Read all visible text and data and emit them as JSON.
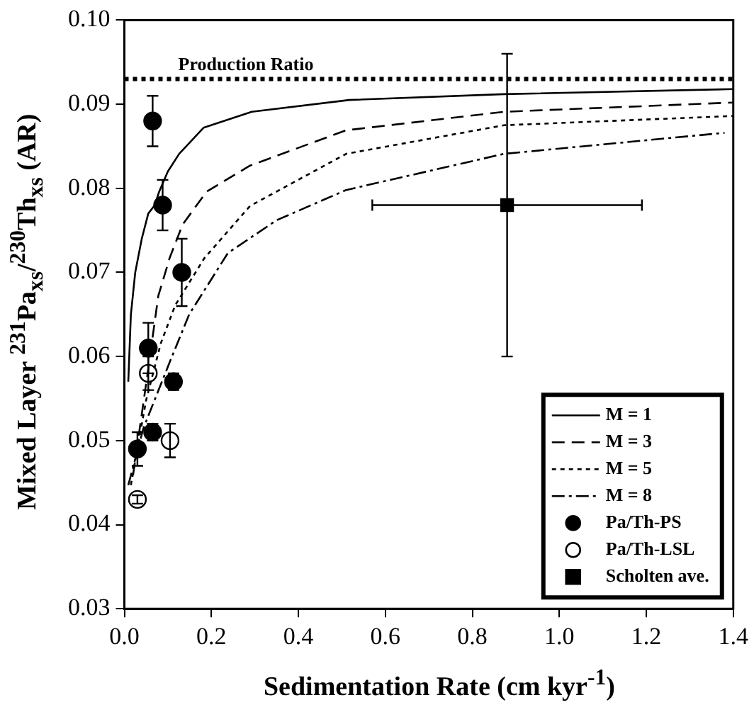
{
  "chart_data": {
    "type": "line",
    "xlabel": "Sedimentation Rate (cm kyr$^{-1}$)",
    "ylabel": "Mixed Layer $^{231}$Pa$_{xs}$/$^{230}$Th$_{xs}$ (AR)",
    "xlim": [
      0,
      1.4
    ],
    "xticks": [
      {
        "value": 0,
        "label": "0.0"
      },
      0.2,
      0.4,
      0.6,
      0.8,
      {
        "value": 1,
        "label": "1.0"
      },
      1.2,
      1.4
    ],
    "ylim": [
      0.03,
      0.1
    ],
    "yticks": [
      0.03,
      0.04,
      0.05,
      0.06,
      0.07,
      0.08,
      0.09,
      {
        "value": 0.1,
        "label": "0.10"
      }
    ],
    "grid": false,
    "legend": "bottom right",
    "ref_lines": [
      {
        "axis": "y",
        "value": 0.093,
        "label": "Production Ratio",
        "color": "#000000",
        "line_style": "dotted"
      }
    ],
    "series": [
      {
        "name": "M = 1",
        "color": "#000000",
        "line_style": "solid",
        "marker": "none",
        "x": [
          0.009,
          0.015,
          0.025,
          0.04,
          0.055,
          0.07,
          0.08,
          0.1,
          0.126,
          0.182,
          0.293,
          0.517,
          0.873,
          1.4
        ],
        "values": [
          0.057,
          0.065,
          0.07,
          0.074,
          0.077,
          0.078,
          0.0796,
          0.082,
          0.0841,
          0.0872,
          0.0891,
          0.0905,
          0.0912,
          0.0918
        ]
      },
      {
        "name": "M = 3",
        "color": "#000000",
        "line_style": "dashed",
        "marker": "none",
        "x": [
          0.02,
          0.054,
          0.078,
          0.104,
          0.134,
          0.189,
          0.289,
          0.51,
          0.873,
          1.4
        ],
        "values": [
          0.0459,
          0.0582,
          0.0672,
          0.0717,
          0.0757,
          0.0796,
          0.0827,
          0.0869,
          0.0891,
          0.0902
        ]
      },
      {
        "name": "M = 5",
        "color": "#000000",
        "line_style": "dotted",
        "marker": "none",
        "x": [
          0.015,
          0.05,
          0.084,
          0.117,
          0.184,
          0.289,
          0.51,
          0.873,
          1.4
        ],
        "values": [
          0.0447,
          0.0548,
          0.0616,
          0.0661,
          0.0717,
          0.0779,
          0.0841,
          0.0875,
          0.0886
        ]
      },
      {
        "name": "M = 8",
        "color": "#000000",
        "line_style": "dashdot",
        "marker": "none",
        "x": [
          0.009,
          0.044,
          0.104,
          0.149,
          0.238,
          0.35,
          0.51,
          0.873,
          1.38
        ],
        "values": [
          0.0447,
          0.0515,
          0.0593,
          0.065,
          0.0723,
          0.0762,
          0.0798,
          0.0841,
          0.0866
        ]
      },
      {
        "name": "Pa/Th-PS",
        "type": "scatter",
        "color": "#000000",
        "marker": "circle",
        "x": [
          0.03,
          0.055,
          0.065,
          0.065,
          0.088,
          0.113,
          0.132
        ],
        "values": [
          0.049,
          0.061,
          0.051,
          0.088,
          0.078,
          0.057,
          0.07
        ],
        "errors": [
          0.002,
          0.003,
          0.001,
          0.003,
          0.003,
          0.001,
          0.004
        ]
      },
      {
        "name": "Pa/Th-LSL",
        "type": "scatter",
        "color": "#ffffff",
        "marker": "circle",
        "x": [
          0.03,
          0.055,
          0.105
        ],
        "values": [
          0.043,
          0.058,
          0.05
        ],
        "errors": [
          0.0005,
          0.002,
          0.002
        ]
      },
      {
        "name": "Scholten ave.",
        "type": "scatter",
        "color": "#000000",
        "marker": "square",
        "x": [
          0.88
        ],
        "values": [
          0.078
        ],
        "errors": [
          0.018
        ],
        "xerrors": [
          0.31
        ]
      }
    ]
  }
}
